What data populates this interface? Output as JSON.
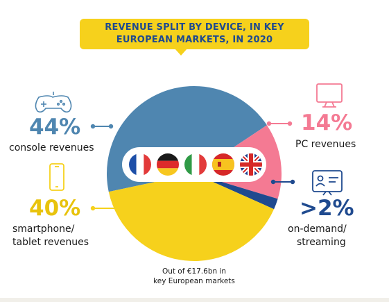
{
  "title": {
    "line1": "REVENUE SPLIT BY DEVICE, IN KEY",
    "line2": "EUROPEAN MARKETS, IN 2020"
  },
  "chart_data": {
    "type": "pie",
    "title": "REVENUE SPLIT BY DEVICE, IN KEY EUROPEAN MARKETS, IN 2020",
    "slices": [
      {
        "key": "console",
        "value": 44,
        "display": "44%",
        "label_lines": [
          "console revenues"
        ],
        "color": "#4f86b0",
        "icon": "gamepad-icon"
      },
      {
        "key": "pc",
        "value": 14,
        "display": "14%",
        "label_lines": [
          "PC revenues"
        ],
        "color": "#f47a93",
        "icon": "monitor-icon"
      },
      {
        "key": "streaming",
        "value": 2,
        "display": ">2%",
        "label_lines": [
          "on-demand/",
          "streaming"
        ],
        "color": "#1f4a8f",
        "icon": "streaming-screen-icon"
      },
      {
        "key": "mobile",
        "value": 40,
        "display": "40%",
        "label_lines": [
          "smartphone/",
          "tablet revenues"
        ],
        "color": "#f6d11c",
        "icon": "smartphone-icon"
      }
    ],
    "flags": [
      "flag-france-icon",
      "flag-germany-icon",
      "flag-italy-icon",
      "flag-spain-icon",
      "flag-uk-icon"
    ]
  },
  "note": {
    "line1": "Out of €17.6bn in",
    "line2": "key European markets"
  },
  "colors": {
    "title_bg": "#f6d11c",
    "title_text": "#1f4a8f",
    "console": "#4f86b0",
    "pc": "#f47a93",
    "streaming": "#1f4a8f",
    "mobile": "#f6d11c"
  }
}
